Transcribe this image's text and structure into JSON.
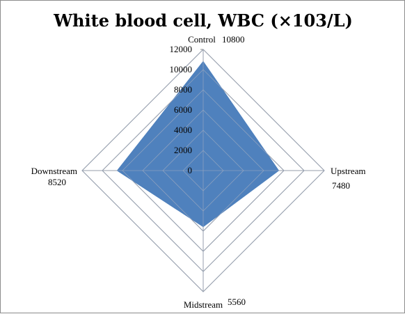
{
  "chart_data": {
    "type": "radar",
    "title": "White blood cell, WBC (×103/L)",
    "categories": [
      "Control",
      "Upstream",
      "Midstream",
      "Downstream"
    ],
    "values": [
      10800,
      7480,
      5560,
      8520
    ],
    "data_labels": [
      "10800",
      "7480",
      "5560",
      "8520"
    ],
    "rmin": 0,
    "rmax": 12000,
    "ticks": [
      0,
      2000,
      4000,
      6000,
      8000,
      10000,
      12000
    ],
    "tick_labels": [
      "0",
      "2000",
      "4000",
      "6000",
      "8000",
      "10000",
      "12000"
    ],
    "series_color": "#4f81bd",
    "grid": true,
    "legend": "none"
  }
}
